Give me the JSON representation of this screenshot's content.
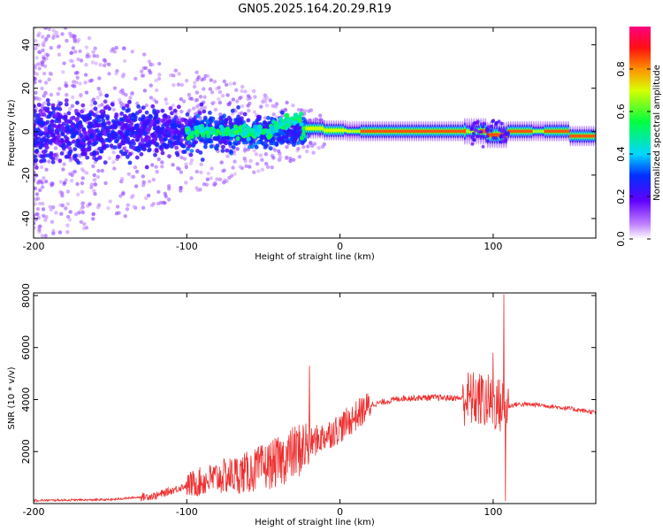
{
  "figure": {
    "title": "GN05.2025.164.20.29.R19"
  },
  "chart_data": [
    {
      "type": "heatmap",
      "title": "GN05.2025.164.20.29.R19",
      "xlabel": "Height of straight line (km)",
      "ylabel": "Frequency (Hz)",
      "xlim": [
        -200,
        167
      ],
      "ylim": [
        -49,
        48
      ],
      "xticks": [
        -200,
        -100,
        0,
        100
      ],
      "yticks": [
        -40,
        -20,
        0,
        20,
        40
      ],
      "grid": false,
      "colorbar": {
        "label": "Normalized spectral amplitude",
        "range": [
          0.0,
          1.0
        ],
        "ticks": [
          0.0,
          0.2,
          0.4,
          0.6,
          0.8
        ],
        "colormap": "rainbow (white-violet-blue-cyan-green-yellow-red-pink)"
      },
      "features": {
        "carrier_line_frequency_hz": 0,
        "strong_carrier_x_range_km": [
          -20,
          167
        ],
        "noisy_scatter_x_range_km": [
          -200,
          -20
        ],
        "carrier_offset_near_x_km": [
          [
            -30,
            3
          ],
          [
            100,
            -2
          ],
          [
            160,
            -2
          ]
        ]
      }
    },
    {
      "type": "line",
      "xlabel": "Height of straight line (km)",
      "ylabel": "SNR (10 * v/v)",
      "xlim": [
        -200,
        167
      ],
      "ylim": [
        0,
        8100
      ],
      "xticks": [
        -200,
        -100,
        0,
        100
      ],
      "yticks": [
        2000,
        4000,
        6000,
        8000
      ],
      "color": "#ee3030",
      "grid": false,
      "trend": {
        "x": [
          -200,
          -150,
          -120,
          -100,
          -80,
          -60,
          -40,
          -20,
          0,
          20,
          40,
          60,
          80,
          90,
          100,
          108,
          115,
          130,
          150,
          167
        ],
        "y": [
          120,
          150,
          300,
          700,
          1000,
          1200,
          1600,
          2300,
          2900,
          3800,
          4050,
          4080,
          4050,
          4000,
          3850,
          3700,
          3820,
          3800,
          3650,
          3500
        ]
      },
      "spikes": [
        {
          "x": -20,
          "y": 5300
        },
        {
          "x": 93,
          "y": 4800
        },
        {
          "x": 100,
          "y": 5800
        },
        {
          "x": 107,
          "y": 8050
        },
        {
          "x": 108,
          "y": 100
        }
      ]
    }
  ]
}
